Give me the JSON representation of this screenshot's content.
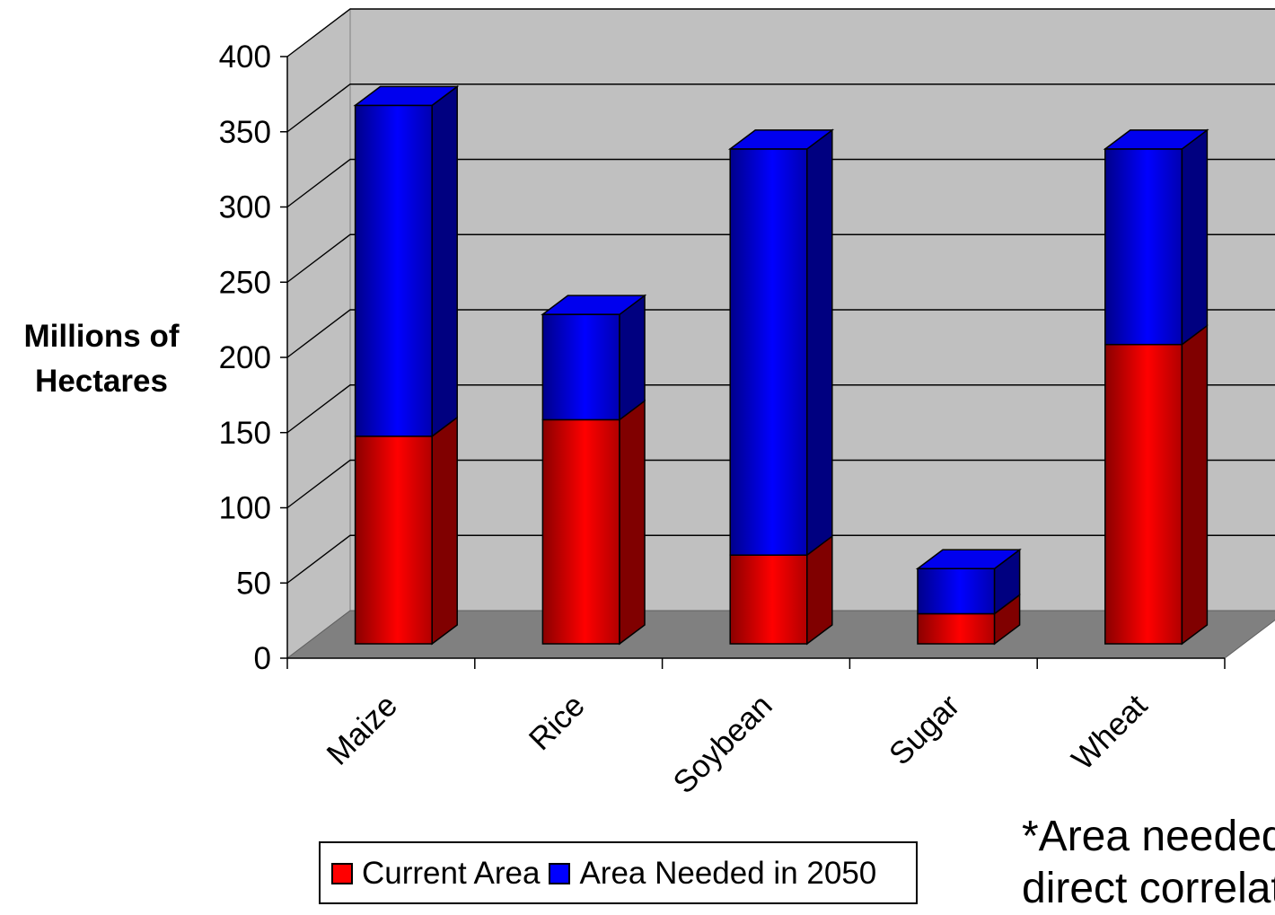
{
  "chart_data": {
    "type": "bar",
    "stacked": true,
    "three_d": true,
    "categories": [
      "Maize",
      "Rice",
      "Soybean",
      "Sugar",
      "Wheat"
    ],
    "series": [
      {
        "name": "Current Area",
        "values": [
          138,
          149,
          59,
          20,
          199
        ],
        "color": "#ff0000"
      },
      {
        "name": "Area Needed in 2050",
        "values": [
          220,
          70,
          270,
          30,
          130
        ],
        "color": "#0000ff"
      }
    ],
    "ylabel": "Millions of Hectares",
    "xlabel": "",
    "ylim": [
      0,
      400
    ],
    "yticks": [
      0,
      50,
      100,
      150,
      200,
      250,
      300,
      350,
      400
    ],
    "grid": true,
    "wall_color": "#c0c0c0",
    "floor_color": "#808080",
    "legend_position": "bottom"
  },
  "legend": {
    "items": [
      {
        "label": "Current Area",
        "color": "#ff0000"
      },
      {
        "label": "Area Needed in 2050",
        "color": "#0000ff"
      }
    ]
  },
  "note": {
    "line1": "*Area needed",
    "line2": "direct correlat"
  }
}
